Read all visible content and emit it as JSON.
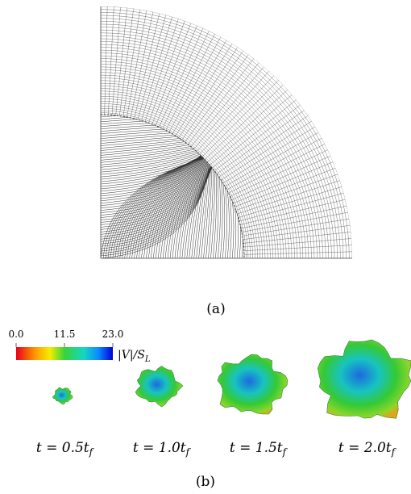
{
  "panel_a": {
    "caption": "(a)"
  },
  "panel_b": {
    "caption": "(b)",
    "colorbar": {
      "ticks": [
        "0.0",
        "11.5",
        "23.0"
      ],
      "label": "|V|/S",
      "label_subscript": "L"
    },
    "snapshots": [
      {
        "text": "t = 0.5t",
        "subscript": "f"
      },
      {
        "text": "t = 1.0t",
        "subscript": "f"
      },
      {
        "text": "t = 1.5t",
        "subscript": "f"
      },
      {
        "text": "t = 2.0t",
        "subscript": "f"
      }
    ]
  }
}
